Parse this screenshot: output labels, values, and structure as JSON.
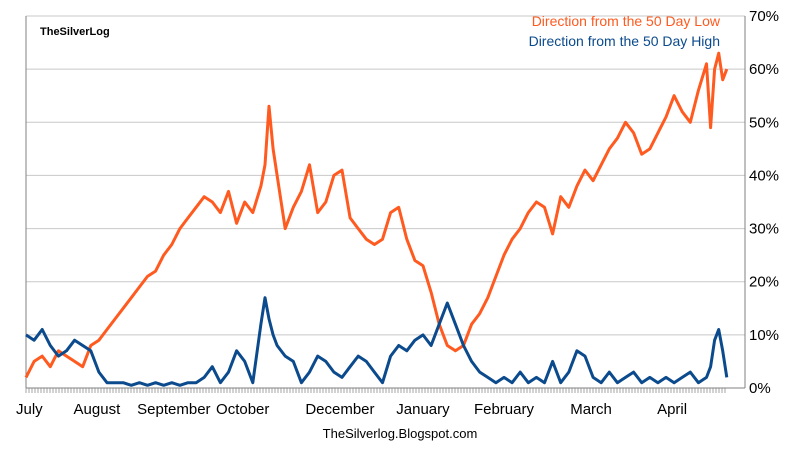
{
  "brand_label": "TheSilverLog",
  "footer_text": "TheSilverlog.Blogspot.com",
  "colors": {
    "low": "#ff5a1f",
    "high": "#0b4a8c",
    "grid": "#c8c8c8",
    "axis": "#808080"
  },
  "chart_data": {
    "type": "line",
    "title": "",
    "xlabel": "",
    "ylabel": "",
    "ylim": [
      0,
      70
    ],
    "y_ticks": [
      "0%",
      "10%",
      "20%",
      "30%",
      "40%",
      "50%",
      "60%",
      "70%"
    ],
    "y_tick_values": [
      0,
      10,
      20,
      30,
      40,
      50,
      60,
      70
    ],
    "grid": true,
    "legend_placement": "top-right",
    "month_labels": [
      "July",
      "August",
      "September",
      "October",
      "December",
      "January",
      "February",
      "March",
      "April"
    ],
    "month_positions": [
      0,
      35,
      73,
      107,
      155,
      196,
      236,
      279,
      319
    ],
    "x_range": [
      0,
      355
    ],
    "series": [
      {
        "name": "Direction from the 50 Day Low",
        "color": "#ff5a1f",
        "x": [
          0,
          4,
          8,
          12,
          16,
          20,
          24,
          28,
          32,
          36,
          40,
          44,
          48,
          52,
          56,
          60,
          64,
          68,
          72,
          76,
          80,
          84,
          88,
          92,
          96,
          100,
          104,
          108,
          112,
          116,
          118,
          120,
          122,
          124,
          128,
          132,
          136,
          140,
          144,
          148,
          152,
          156,
          160,
          164,
          168,
          172,
          176,
          180,
          184,
          188,
          192,
          196,
          200,
          204,
          208,
          212,
          216,
          220,
          224,
          228,
          232,
          236,
          240,
          244,
          248,
          252,
          256,
          260,
          264,
          268,
          272,
          276,
          280,
          284,
          288,
          292,
          296,
          300,
          304,
          308,
          312,
          316,
          320,
          324,
          328,
          332,
          336,
          338,
          340,
          342,
          344,
          346
        ],
        "values": [
          2,
          5,
          6,
          4,
          7,
          6,
          5,
          4,
          8,
          9,
          11,
          13,
          15,
          17,
          19,
          21,
          22,
          25,
          27,
          30,
          32,
          34,
          36,
          35,
          33,
          37,
          31,
          35,
          33,
          38,
          42,
          53,
          45,
          40,
          30,
          34,
          37,
          42,
          33,
          35,
          40,
          41,
          32,
          30,
          28,
          27,
          28,
          33,
          34,
          28,
          24,
          23,
          18,
          12,
          8,
          7,
          8,
          12,
          14,
          17,
          21,
          25,
          28,
          30,
          33,
          35,
          34,
          29,
          36,
          34,
          38,
          41,
          39,
          42,
          45,
          47,
          50,
          48,
          44,
          45,
          48,
          51,
          55,
          52,
          50,
          56,
          61,
          49,
          60,
          63,
          58,
          60
        ]
      },
      {
        "name": "Direction from the 50 Day High",
        "color": "#0b4a8c",
        "x": [
          0,
          4,
          8,
          12,
          16,
          20,
          24,
          28,
          32,
          36,
          40,
          44,
          48,
          52,
          56,
          60,
          64,
          68,
          72,
          76,
          80,
          84,
          88,
          92,
          96,
          100,
          104,
          108,
          112,
          116,
          118,
          120,
          122,
          124,
          128,
          132,
          136,
          140,
          144,
          148,
          152,
          156,
          160,
          164,
          168,
          172,
          176,
          180,
          184,
          188,
          192,
          196,
          200,
          204,
          208,
          212,
          216,
          220,
          224,
          228,
          232,
          236,
          240,
          244,
          248,
          252,
          256,
          260,
          264,
          268,
          272,
          276,
          280,
          284,
          288,
          292,
          296,
          300,
          304,
          308,
          312,
          316,
          320,
          324,
          328,
          332,
          336,
          338,
          340,
          342,
          344,
          346
        ],
        "values": [
          10,
          9,
          11,
          8,
          6,
          7,
          9,
          8,
          7,
          3,
          1,
          1,
          1,
          0.5,
          1,
          0.5,
          1,
          0.5,
          1,
          0.5,
          1,
          1,
          2,
          4,
          1,
          3,
          7,
          5,
          1,
          12,
          17,
          13,
          10,
          8,
          6,
          5,
          1,
          3,
          6,
          5,
          3,
          2,
          4,
          6,
          5,
          3,
          1,
          6,
          8,
          7,
          9,
          10,
          8,
          12,
          16,
          12,
          8,
          5,
          3,
          2,
          1,
          2,
          1,
          3,
          1,
          2,
          1,
          5,
          1,
          3,
          7,
          6,
          2,
          1,
          3,
          1,
          2,
          3,
          1,
          2,
          1,
          2,
          1,
          2,
          3,
          1,
          2,
          4,
          9,
          11,
          7,
          2
        ]
      }
    ]
  }
}
